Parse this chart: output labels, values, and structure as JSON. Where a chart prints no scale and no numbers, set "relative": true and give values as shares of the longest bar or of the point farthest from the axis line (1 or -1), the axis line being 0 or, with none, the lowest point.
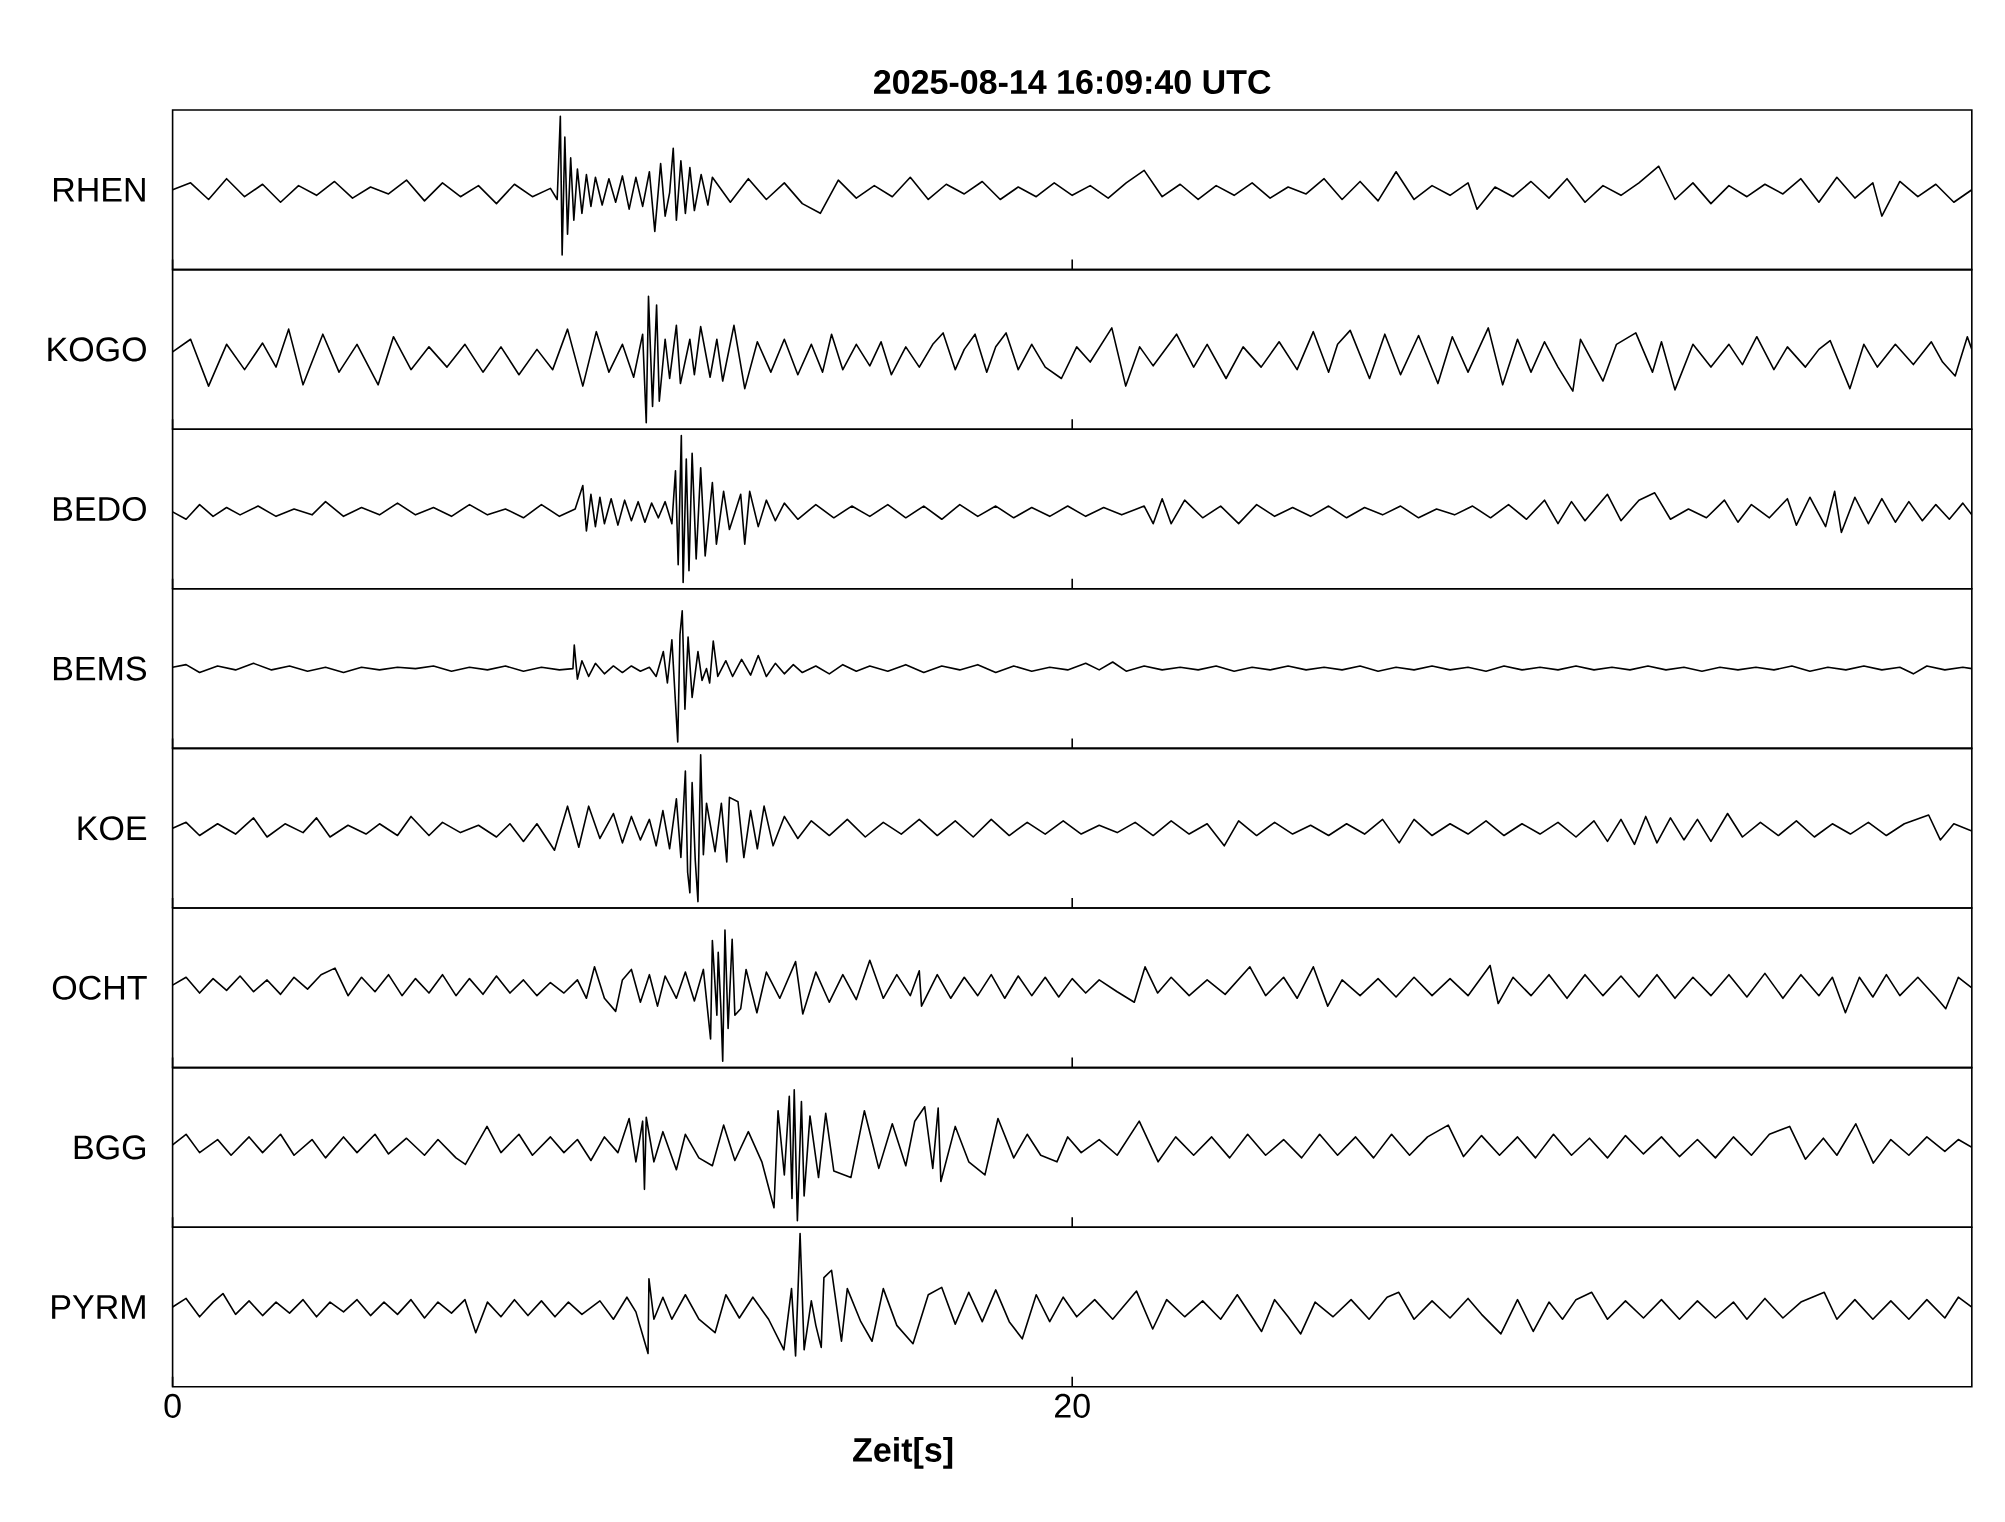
{
  "chart_data": [
    {
      "type": "line",
      "title": "2025-08-14  16:09:40 UTC",
      "ylabel": "RHEN",
      "relative": true,
      "color": "#000000",
      "xlim": [
        0,
        40
      ],
      "xticks": [
        0,
        20
      ],
      "tick_labels": false,
      "x": [
        0,
        0.4,
        0.8,
        1.2,
        1.6,
        2,
        2.4,
        2.8,
        3.2,
        3.6,
        4,
        4.4,
        4.8,
        5.2,
        5.6,
        6,
        6.4,
        6.8,
        7.2,
        7.6,
        8,
        8.4,
        8.55,
        8.62,
        8.66,
        8.72,
        8.78,
        8.85,
        8.92,
        9,
        9.1,
        9.2,
        9.3,
        9.4,
        9.55,
        9.7,
        9.85,
        10,
        10.15,
        10.3,
        10.45,
        10.6,
        10.72,
        10.85,
        10.95,
        11.05,
        11.13,
        11.2,
        11.3,
        11.4,
        11.5,
        11.6,
        11.75,
        11.9,
        12,
        12.4,
        12.8,
        13.2,
        13.6,
        14,
        14.4,
        14.8,
        15.2,
        15.6,
        16,
        16.4,
        16.8,
        17.2,
        17.6,
        18,
        18.4,
        18.8,
        19.2,
        19.6,
        20,
        20.4,
        20.8,
        21.2,
        21.6,
        22,
        22.4,
        22.8,
        23.2,
        23.6,
        24,
        24.4,
        24.8,
        25.2,
        25.6,
        26,
        26.4,
        26.8,
        27.2,
        27.6,
        28,
        28.4,
        28.8,
        29,
        29.4,
        29.8,
        30.2,
        30.6,
        31,
        31.4,
        31.8,
        32.2,
        32.6,
        33.04,
        33.4,
        33.8,
        34.2,
        34.6,
        35,
        35.4,
        35.8,
        36.2,
        36.6,
        37,
        37.4,
        37.8,
        38,
        38.4,
        38.8,
        39.2,
        39.6,
        40
      ],
      "values": [
        0.47,
        0.52,
        0.4,
        0.55,
        0.42,
        0.51,
        0.38,
        0.5,
        0.43,
        0.53,
        0.41,
        0.49,
        0.44,
        0.54,
        0.39,
        0.52,
        0.42,
        0.5,
        0.37,
        0.51,
        0.42,
        0.48,
        0.4,
        1.0,
        0.0,
        0.85,
        0.15,
        0.7,
        0.25,
        0.62,
        0.3,
        0.58,
        0.35,
        0.56,
        0.36,
        0.55,
        0.38,
        0.57,
        0.33,
        0.56,
        0.35,
        0.6,
        0.17,
        0.66,
        0.28,
        0.45,
        0.77,
        0.25,
        0.68,
        0.3,
        0.63,
        0.32,
        0.58,
        0.36,
        0.56,
        0.38,
        0.55,
        0.4,
        0.52,
        0.37,
        0.3,
        0.54,
        0.41,
        0.5,
        0.42,
        0.56,
        0.4,
        0.51,
        0.44,
        0.53,
        0.4,
        0.49,
        0.42,
        0.52,
        0.43,
        0.5,
        0.41,
        0.52,
        0.61,
        0.42,
        0.51,
        0.4,
        0.5,
        0.43,
        0.52,
        0.41,
        0.49,
        0.44,
        0.55,
        0.4,
        0.53,
        0.39,
        0.6,
        0.4,
        0.5,
        0.43,
        0.52,
        0.33,
        0.49,
        0.42,
        0.53,
        0.41,
        0.55,
        0.38,
        0.5,
        0.43,
        0.52,
        0.64,
        0.4,
        0.52,
        0.37,
        0.5,
        0.42,
        0.51,
        0.44,
        0.55,
        0.38,
        0.56,
        0.41,
        0.52,
        0.28,
        0.53,
        0.42,
        0.51,
        0.38,
        0.47
      ]
    },
    {
      "type": "line",
      "ylabel": "KOGO",
      "relative": true,
      "color": "#000000",
      "xlim": [
        0,
        40
      ],
      "xticks": [
        0,
        20
      ],
      "tick_labels": false,
      "x": [
        0,
        0.4,
        0.8,
        1.2,
        1.6,
        2.0,
        2.3,
        2.58,
        2.9,
        3.34,
        3.7,
        4.1,
        4.57,
        4.91,
        5.3,
        5.7,
        6.1,
        6.5,
        6.9,
        7.3,
        7.7,
        8.1,
        8.45,
        8.78,
        9.12,
        9.42,
        9.7,
        10.0,
        10.25,
        10.45,
        10.53,
        10.58,
        10.67,
        10.76,
        10.82,
        10.95,
        11.05,
        11.2,
        11.29,
        11.5,
        11.6,
        11.74,
        11.95,
        12.1,
        12.23,
        12.48,
        12.72,
        13.0,
        13.3,
        13.6,
        13.9,
        14.2,
        14.45,
        14.65,
        14.9,
        15.2,
        15.5,
        15.75,
        15.98,
        16.3,
        16.6,
        16.9,
        17.13,
        17.4,
        17.6,
        17.84,
        18.1,
        18.3,
        18.53,
        18.8,
        19.1,
        19.4,
        19.76,
        20.1,
        20.4,
        20.88,
        21.19,
        21.5,
        21.8,
        22.32,
        22.7,
        23.0,
        23.42,
        23.8,
        24.2,
        24.6,
        25.0,
        25.36,
        25.7,
        25.9,
        26.18,
        26.61,
        26.95,
        27.3,
        27.7,
        28.13,
        28.45,
        28.8,
        29.25,
        29.57,
        29.9,
        30.2,
        30.5,
        30.8,
        31.13,
        31.3,
        31.8,
        32.1,
        32.53,
        32.9,
        33.1,
        33.4,
        33.8,
        34.2,
        34.6,
        34.9,
        35.22,
        35.6,
        35.9,
        36.3,
        36.6,
        36.85,
        37.29,
        37.6,
        37.9,
        38.3,
        38.7,
        39.1,
        39.35,
        39.63,
        39.9,
        40
      ],
      "values": [
        0.56,
        0.66,
        0.29,
        0.62,
        0.42,
        0.63,
        0.44,
        0.74,
        0.3,
        0.7,
        0.4,
        0.62,
        0.3,
        0.68,
        0.42,
        0.6,
        0.44,
        0.62,
        0.4,
        0.6,
        0.38,
        0.58,
        0.42,
        0.74,
        0.29,
        0.72,
        0.4,
        0.62,
        0.36,
        0.7,
        0.0,
        1.0,
        0.13,
        0.93,
        0.17,
        0.66,
        0.35,
        0.77,
        0.31,
        0.66,
        0.38,
        0.76,
        0.36,
        0.66,
        0.33,
        0.77,
        0.27,
        0.64,
        0.4,
        0.66,
        0.38,
        0.62,
        0.4,
        0.7,
        0.42,
        0.62,
        0.45,
        0.64,
        0.38,
        0.6,
        0.44,
        0.62,
        0.71,
        0.42,
        0.58,
        0.7,
        0.4,
        0.6,
        0.71,
        0.42,
        0.62,
        0.44,
        0.35,
        0.6,
        0.48,
        0.75,
        0.29,
        0.6,
        0.45,
        0.7,
        0.44,
        0.62,
        0.35,
        0.6,
        0.44,
        0.64,
        0.42,
        0.72,
        0.4,
        0.62,
        0.73,
        0.35,
        0.7,
        0.38,
        0.69,
        0.31,
        0.68,
        0.4,
        0.75,
        0.3,
        0.66,
        0.4,
        0.64,
        0.44,
        0.25,
        0.66,
        0.33,
        0.62,
        0.71,
        0.4,
        0.64,
        0.26,
        0.62,
        0.44,
        0.62,
        0.46,
        0.68,
        0.42,
        0.6,
        0.44,
        0.58,
        0.65,
        0.27,
        0.62,
        0.44,
        0.62,
        0.46,
        0.64,
        0.48,
        0.37,
        0.68,
        0.58
      ]
    },
    {
      "type": "line",
      "ylabel": "BEDO",
      "relative": true,
      "color": "#000000",
      "xlim": [
        0,
        40
      ],
      "xticks": [
        0,
        20
      ],
      "tick_labels": false,
      "x": [
        0,
        0.3,
        0.6,
        0.9,
        1.2,
        1.5,
        1.9,
        2.3,
        2.7,
        3.1,
        3.4,
        3.8,
        4.2,
        4.6,
        5.0,
        5.4,
        5.8,
        6.2,
        6.6,
        7.0,
        7.4,
        7.8,
        8.2,
        8.6,
        8.95,
        9.12,
        9.2,
        9.3,
        9.4,
        9.5,
        9.6,
        9.75,
        9.9,
        10.05,
        10.2,
        10.35,
        10.5,
        10.65,
        10.8,
        10.95,
        11.1,
        11.18,
        11.24,
        11.31,
        11.35,
        11.42,
        11.48,
        11.55,
        11.64,
        11.74,
        11.84,
        12.0,
        12.09,
        12.25,
        12.38,
        12.63,
        12.72,
        12.83,
        13.02,
        13.2,
        13.4,
        13.6,
        13.9,
        14.3,
        14.7,
        15.1,
        15.5,
        15.9,
        16.3,
        16.7,
        17.1,
        17.5,
        17.9,
        18.3,
        18.7,
        19.1,
        19.5,
        19.9,
        20.3,
        20.7,
        21.1,
        21.6,
        21.8,
        22.0,
        22.2,
        22.5,
        22.9,
        23.3,
        23.7,
        24.1,
        24.5,
        24.9,
        25.3,
        25.7,
        26.1,
        26.5,
        26.9,
        27.3,
        27.7,
        28.1,
        28.5,
        28.9,
        29.3,
        29.7,
        30.1,
        30.5,
        30.8,
        31.1,
        31.4,
        31.9,
        32.2,
        32.6,
        32.95,
        33.3,
        33.7,
        34.1,
        34.5,
        34.8,
        35.1,
        35.5,
        35.9,
        36.1,
        36.4,
        36.75,
        36.95,
        37.1,
        37.4,
        37.7,
        38.0,
        38.3,
        38.6,
        38.9,
        39.2,
        39.5,
        39.8,
        40
      ],
      "values": [
        0.48,
        0.43,
        0.53,
        0.45,
        0.51,
        0.46,
        0.52,
        0.45,
        0.5,
        0.46,
        0.55,
        0.45,
        0.51,
        0.46,
        0.54,
        0.46,
        0.51,
        0.45,
        0.53,
        0.46,
        0.5,
        0.44,
        0.53,
        0.45,
        0.5,
        0.66,
        0.35,
        0.6,
        0.38,
        0.58,
        0.4,
        0.57,
        0.39,
        0.56,
        0.42,
        0.55,
        0.41,
        0.54,
        0.44,
        0.55,
        0.4,
        0.76,
        0.12,
        1.0,
        0.0,
        0.84,
        0.08,
        0.88,
        0.16,
        0.78,
        0.18,
        0.68,
        0.26,
        0.62,
        0.36,
        0.6,
        0.26,
        0.62,
        0.38,
        0.56,
        0.42,
        0.54,
        0.43,
        0.53,
        0.44,
        0.52,
        0.45,
        0.53,
        0.44,
        0.52,
        0.43,
        0.53,
        0.45,
        0.52,
        0.44,
        0.51,
        0.45,
        0.52,
        0.45,
        0.51,
        0.46,
        0.52,
        0.4,
        0.57,
        0.4,
        0.56,
        0.44,
        0.52,
        0.4,
        0.53,
        0.45,
        0.51,
        0.45,
        0.52,
        0.44,
        0.51,
        0.46,
        0.52,
        0.44,
        0.5,
        0.46,
        0.52,
        0.44,
        0.53,
        0.43,
        0.56,
        0.4,
        0.55,
        0.42,
        0.6,
        0.42,
        0.56,
        0.61,
        0.43,
        0.5,
        0.44,
        0.56,
        0.41,
        0.53,
        0.44,
        0.57,
        0.39,
        0.58,
        0.38,
        0.62,
        0.34,
        0.58,
        0.4,
        0.57,
        0.41,
        0.55,
        0.42,
        0.53,
        0.43,
        0.54,
        0.46
      ]
    },
    {
      "type": "line",
      "ylabel": "BEMS",
      "relative": true,
      "color": "#000000",
      "xlim": [
        0,
        40
      ],
      "xticks": [
        0,
        20
      ],
      "tick_labels": false,
      "x": [
        0,
        0.3,
        0.6,
        1.0,
        1.4,
        1.8,
        2.2,
        2.6,
        3.0,
        3.4,
        3.8,
        4.2,
        4.6,
        5.0,
        5.4,
        5.8,
        6.2,
        6.6,
        7.0,
        7.4,
        7.8,
        8.2,
        8.6,
        8.9,
        8.93,
        9.0,
        9.1,
        9.25,
        9.4,
        9.6,
        9.8,
        10.0,
        10.2,
        10.4,
        10.6,
        10.75,
        10.91,
        11.0,
        11.1,
        11.18,
        11.23,
        11.28,
        11.33,
        11.39,
        11.46,
        11.55,
        11.68,
        11.77,
        11.87,
        11.94,
        12.02,
        12.12,
        12.3,
        12.45,
        12.65,
        12.85,
        13.02,
        13.2,
        13.4,
        13.6,
        13.8,
        14.0,
        14.3,
        14.6,
        14.9,
        15.2,
        15.5,
        15.9,
        16.3,
        16.7,
        17.1,
        17.5,
        17.9,
        18.3,
        18.7,
        19.1,
        19.5,
        19.9,
        20.3,
        20.6,
        20.9,
        21.2,
        21.6,
        22.0,
        22.4,
        22.8,
        23.2,
        23.6,
        24.0,
        24.4,
        24.8,
        25.2,
        25.6,
        26.0,
        26.4,
        26.8,
        27.2,
        27.6,
        28.0,
        28.4,
        28.8,
        29.2,
        29.6,
        30.0,
        30.4,
        30.8,
        31.2,
        31.6,
        32.0,
        32.4,
        32.8,
        33.2,
        33.6,
        34.0,
        34.4,
        34.8,
        35.2,
        35.6,
        36.0,
        36.4,
        36.8,
        37.2,
        37.6,
        38.0,
        38.4,
        38.7,
        39.0,
        39.4,
        39.8,
        40
      ],
      "values": [
        0.57,
        0.59,
        0.53,
        0.58,
        0.55,
        0.6,
        0.55,
        0.58,
        0.54,
        0.57,
        0.53,
        0.57,
        0.55,
        0.57,
        0.56,
        0.58,
        0.54,
        0.57,
        0.55,
        0.58,
        0.54,
        0.57,
        0.55,
        0.56,
        0.74,
        0.48,
        0.62,
        0.5,
        0.6,
        0.52,
        0.58,
        0.53,
        0.58,
        0.54,
        0.57,
        0.5,
        0.69,
        0.45,
        0.78,
        0.3,
        0.0,
        0.82,
        1.0,
        0.25,
        0.8,
        0.34,
        0.69,
        0.47,
        0.56,
        0.45,
        0.77,
        0.5,
        0.62,
        0.5,
        0.63,
        0.51,
        0.66,
        0.5,
        0.6,
        0.52,
        0.59,
        0.53,
        0.58,
        0.52,
        0.59,
        0.54,
        0.58,
        0.54,
        0.59,
        0.53,
        0.58,
        0.55,
        0.59,
        0.53,
        0.58,
        0.54,
        0.57,
        0.55,
        0.6,
        0.55,
        0.61,
        0.54,
        0.58,
        0.55,
        0.57,
        0.55,
        0.58,
        0.54,
        0.57,
        0.55,
        0.58,
        0.55,
        0.57,
        0.55,
        0.58,
        0.54,
        0.57,
        0.55,
        0.58,
        0.55,
        0.57,
        0.54,
        0.58,
        0.55,
        0.57,
        0.55,
        0.58,
        0.55,
        0.57,
        0.55,
        0.58,
        0.55,
        0.57,
        0.54,
        0.57,
        0.55,
        0.57,
        0.55,
        0.58,
        0.54,
        0.57,
        0.55,
        0.58,
        0.55,
        0.57,
        0.52,
        0.58,
        0.55,
        0.57,
        0.56
      ]
    },
    {
      "type": "line",
      "ylabel": "KOE",
      "relative": true,
      "color": "#000000",
      "xlim": [
        0,
        40
      ],
      "xticks": [
        0,
        20
      ],
      "tick_labels": false,
      "x": [
        0,
        0.3,
        0.6,
        1.0,
        1.4,
        1.8,
        2.1,
        2.5,
        2.9,
        3.2,
        3.5,
        3.9,
        4.3,
        4.6,
        5.0,
        5.3,
        5.7,
        6.0,
        6.4,
        6.8,
        7.2,
        7.5,
        7.8,
        8.1,
        8.49,
        8.78,
        9.03,
        9.25,
        9.5,
        9.8,
        10.0,
        10.2,
        10.4,
        10.6,
        10.75,
        10.9,
        11.05,
        11.2,
        11.3,
        11.4,
        11.45,
        11.5,
        11.55,
        11.62,
        11.68,
        11.74,
        11.8,
        11.87,
        12.06,
        12.2,
        12.32,
        12.38,
        12.57,
        12.7,
        12.85,
        13.0,
        13.15,
        13.35,
        13.6,
        13.9,
        14.2,
        14.6,
        15.0,
        15.4,
        15.8,
        16.2,
        16.6,
        17.0,
        17.4,
        17.8,
        18.2,
        18.6,
        19.0,
        19.4,
        19.8,
        20.2,
        20.6,
        21.0,
        21.4,
        21.8,
        22.2,
        22.6,
        23.0,
        23.38,
        23.7,
        24.1,
        24.5,
        24.9,
        25.3,
        25.7,
        26.1,
        26.5,
        26.9,
        27.27,
        27.6,
        28.0,
        28.4,
        28.8,
        29.2,
        29.6,
        30.0,
        30.4,
        30.8,
        31.2,
        31.6,
        31.9,
        32.2,
        32.5,
        32.75,
        33.0,
        33.3,
        33.6,
        33.9,
        34.2,
        34.57,
        34.9,
        35.3,
        35.7,
        36.1,
        36.5,
        36.9,
        37.3,
        37.7,
        38.1,
        38.5,
        39.04,
        39.3,
        39.6,
        40
      ],
      "values": [
        0.5,
        0.54,
        0.45,
        0.53,
        0.46,
        0.57,
        0.44,
        0.53,
        0.47,
        0.57,
        0.44,
        0.52,
        0.46,
        0.53,
        0.45,
        0.58,
        0.45,
        0.54,
        0.47,
        0.52,
        0.44,
        0.53,
        0.41,
        0.53,
        0.35,
        0.65,
        0.37,
        0.65,
        0.43,
        0.6,
        0.4,
        0.58,
        0.42,
        0.56,
        0.38,
        0.62,
        0.36,
        0.7,
        0.3,
        0.89,
        0.2,
        0.06,
        0.81,
        0.28,
        0.0,
        1.0,
        0.32,
        0.67,
        0.34,
        0.67,
        0.27,
        0.71,
        0.68,
        0.3,
        0.62,
        0.36,
        0.65,
        0.38,
        0.58,
        0.43,
        0.55,
        0.45,
        0.56,
        0.44,
        0.54,
        0.46,
        0.56,
        0.45,
        0.55,
        0.44,
        0.56,
        0.45,
        0.54,
        0.46,
        0.55,
        0.46,
        0.52,
        0.47,
        0.54,
        0.45,
        0.55,
        0.46,
        0.53,
        0.38,
        0.55,
        0.45,
        0.54,
        0.46,
        0.52,
        0.45,
        0.53,
        0.46,
        0.56,
        0.4,
        0.56,
        0.45,
        0.53,
        0.46,
        0.55,
        0.45,
        0.53,
        0.46,
        0.54,
        0.44,
        0.55,
        0.41,
        0.56,
        0.39,
        0.58,
        0.4,
        0.57,
        0.42,
        0.56,
        0.41,
        0.6,
        0.44,
        0.54,
        0.45,
        0.55,
        0.44,
        0.53,
        0.46,
        0.54,
        0.45,
        0.53,
        0.59,
        0.42,
        0.53,
        0.48
      ]
    },
    {
      "type": "line",
      "ylabel": "OCHT",
      "relative": true,
      "color": "#000000",
      "xlim": [
        0,
        40
      ],
      "xticks": [
        0,
        20
      ],
      "tick_labels": false,
      "x": [
        0,
        0.3,
        0.6,
        0.9,
        1.2,
        1.5,
        1.8,
        2.1,
        2.4,
        2.7,
        3.0,
        3.3,
        3.61,
        3.9,
        4.2,
        4.5,
        4.8,
        5.1,
        5.4,
        5.7,
        6.0,
        6.3,
        6.6,
        6.9,
        7.2,
        7.5,
        7.8,
        8.1,
        8.4,
        8.7,
        9.0,
        9.2,
        9.38,
        9.6,
        9.85,
        10.0,
        10.2,
        10.4,
        10.6,
        10.78,
        10.95,
        11.2,
        11.4,
        11.6,
        11.8,
        11.96,
        12.0,
        12.1,
        12.13,
        12.19,
        12.23,
        12.28,
        12.35,
        12.44,
        12.5,
        12.63,
        12.75,
        12.99,
        13.2,
        13.5,
        13.85,
        14.01,
        14.3,
        14.6,
        14.9,
        15.2,
        15.5,
        15.8,
        16.1,
        16.4,
        16.6,
        16.65,
        17.0,
        17.3,
        17.6,
        17.9,
        18.2,
        18.5,
        18.8,
        19.1,
        19.4,
        19.7,
        20.0,
        20.3,
        20.6,
        21.0,
        21.38,
        21.62,
        21.9,
        22.2,
        22.6,
        23.0,
        23.4,
        23.95,
        24.3,
        24.7,
        25.0,
        25.36,
        25.68,
        26.0,
        26.4,
        26.8,
        27.2,
        27.6,
        28.0,
        28.4,
        28.8,
        29.29,
        29.47,
        29.8,
        30.2,
        30.6,
        31.0,
        31.4,
        31.8,
        32.2,
        32.6,
        33.0,
        33.4,
        33.8,
        34.2,
        34.6,
        35.0,
        35.4,
        35.8,
        36.2,
        36.6,
        36.9,
        37.19,
        37.5,
        37.8,
        38.1,
        38.4,
        38.8,
        39.2,
        39.42,
        39.7,
        40
      ],
      "values": [
        0.58,
        0.64,
        0.52,
        0.63,
        0.54,
        0.65,
        0.53,
        0.62,
        0.51,
        0.64,
        0.55,
        0.66,
        0.71,
        0.5,
        0.64,
        0.53,
        0.66,
        0.5,
        0.63,
        0.52,
        0.66,
        0.5,
        0.63,
        0.51,
        0.65,
        0.52,
        0.62,
        0.5,
        0.6,
        0.52,
        0.62,
        0.48,
        0.72,
        0.48,
        0.38,
        0.62,
        0.7,
        0.45,
        0.66,
        0.42,
        0.65,
        0.48,
        0.68,
        0.46,
        0.7,
        0.17,
        0.92,
        0.35,
        0.83,
        0.4,
        0.0,
        1.0,
        0.25,
        0.93,
        0.35,
        0.4,
        0.7,
        0.37,
        0.68,
        0.48,
        0.76,
        0.36,
        0.68,
        0.45,
        0.66,
        0.47,
        0.77,
        0.48,
        0.66,
        0.5,
        0.69,
        0.42,
        0.66,
        0.48,
        0.64,
        0.5,
        0.66,
        0.48,
        0.65,
        0.5,
        0.64,
        0.49,
        0.63,
        0.52,
        0.62,
        0.53,
        0.45,
        0.72,
        0.52,
        0.64,
        0.5,
        0.62,
        0.51,
        0.72,
        0.5,
        0.64,
        0.48,
        0.72,
        0.42,
        0.62,
        0.5,
        0.63,
        0.49,
        0.64,
        0.5,
        0.63,
        0.5,
        0.73,
        0.44,
        0.64,
        0.5,
        0.66,
        0.48,
        0.66,
        0.5,
        0.65,
        0.49,
        0.66,
        0.48,
        0.64,
        0.5,
        0.66,
        0.49,
        0.67,
        0.48,
        0.66,
        0.5,
        0.64,
        0.37,
        0.64,
        0.49,
        0.66,
        0.5,
        0.64,
        0.49,
        0.4,
        0.64,
        0.56
      ]
    },
    {
      "type": "line",
      "ylabel": "BGG",
      "relative": true,
      "color": "#000000",
      "xlim": [
        0,
        40
      ],
      "xticks": [
        0,
        20
      ],
      "tick_labels": false,
      "x": [
        0,
        0.3,
        0.6,
        1.0,
        1.3,
        1.7,
        2.0,
        2.4,
        2.7,
        3.1,
        3.4,
        3.8,
        4.1,
        4.5,
        4.8,
        5.2,
        5.6,
        5.9,
        6.3,
        6.51,
        6.99,
        7.3,
        7.7,
        8.0,
        8.4,
        8.7,
        9.0,
        9.3,
        9.6,
        9.9,
        10.15,
        10.3,
        10.45,
        10.49,
        10.53,
        10.7,
        10.9,
        11.2,
        11.4,
        11.7,
        12.0,
        12.25,
        12.5,
        12.8,
        13.1,
        13.37,
        13.46,
        13.6,
        13.71,
        13.77,
        13.82,
        13.89,
        13.98,
        14.04,
        14.17,
        14.36,
        14.52,
        14.7,
        15.08,
        15.38,
        15.7,
        16.0,
        16.3,
        16.5,
        16.72,
        16.9,
        17.02,
        17.08,
        17.4,
        17.7,
        18.06,
        18.35,
        18.7,
        19.0,
        19.3,
        19.66,
        19.9,
        20.2,
        20.6,
        21.0,
        21.49,
        21.91,
        22.3,
        22.7,
        23.1,
        23.5,
        23.9,
        24.3,
        24.7,
        25.1,
        25.5,
        25.9,
        26.3,
        26.7,
        27.1,
        27.5,
        27.9,
        28.36,
        28.7,
        29.1,
        29.5,
        29.9,
        30.3,
        30.7,
        31.1,
        31.5,
        31.9,
        32.3,
        32.7,
        33.1,
        33.5,
        33.9,
        34.3,
        34.7,
        35.1,
        35.5,
        35.95,
        36.3,
        36.7,
        37.0,
        37.42,
        37.81,
        38.2,
        38.6,
        39.0,
        39.4,
        39.7,
        40
      ],
      "values": [
        0.58,
        0.66,
        0.52,
        0.62,
        0.5,
        0.64,
        0.52,
        0.66,
        0.5,
        0.62,
        0.48,
        0.64,
        0.52,
        0.66,
        0.51,
        0.63,
        0.5,
        0.62,
        0.48,
        0.43,
        0.72,
        0.52,
        0.66,
        0.5,
        0.64,
        0.52,
        0.62,
        0.46,
        0.64,
        0.52,
        0.78,
        0.45,
        0.76,
        0.24,
        0.79,
        0.45,
        0.68,
        0.39,
        0.66,
        0.48,
        0.42,
        0.73,
        0.46,
        0.68,
        0.45,
        0.1,
        0.84,
        0.35,
        0.95,
        0.17,
        1.0,
        0.0,
        0.91,
        0.19,
        0.8,
        0.33,
        0.82,
        0.38,
        0.33,
        0.84,
        0.4,
        0.74,
        0.42,
        0.76,
        0.87,
        0.4,
        0.86,
        0.3,
        0.72,
        0.45,
        0.35,
        0.78,
        0.48,
        0.66,
        0.5,
        0.45,
        0.64,
        0.52,
        0.62,
        0.5,
        0.76,
        0.45,
        0.64,
        0.5,
        0.64,
        0.48,
        0.66,
        0.5,
        0.62,
        0.48,
        0.66,
        0.5,
        0.64,
        0.48,
        0.66,
        0.5,
        0.64,
        0.73,
        0.49,
        0.65,
        0.5,
        0.64,
        0.48,
        0.66,
        0.5,
        0.63,
        0.48,
        0.65,
        0.51,
        0.64,
        0.49,
        0.62,
        0.48,
        0.64,
        0.5,
        0.66,
        0.72,
        0.47,
        0.63,
        0.5,
        0.74,
        0.44,
        0.62,
        0.5,
        0.64,
        0.53,
        0.62,
        0.56
      ]
    },
    {
      "type": "line",
      "ylabel": "PYRM",
      "xlabel": "Zeit[s]",
      "relative": true,
      "color": "#000000",
      "xlim": [
        0,
        40
      ],
      "xticks": [
        0,
        20
      ],
      "tick_labels": "x",
      "x": [
        0,
        0.3,
        0.6,
        0.9,
        1.12,
        1.4,
        1.7,
        2.0,
        2.3,
        2.6,
        2.9,
        3.2,
        3.5,
        3.8,
        4.1,
        4.4,
        4.7,
        5.0,
        5.3,
        5.6,
        5.9,
        6.2,
        6.5,
        6.74,
        7.0,
        7.3,
        7.6,
        7.9,
        8.2,
        8.5,
        8.8,
        9.1,
        9.5,
        9.8,
        10.1,
        10.3,
        10.57,
        10.59,
        10.7,
        10.9,
        11.1,
        11.4,
        11.7,
        12.06,
        12.3,
        12.6,
        12.9,
        13.25,
        13.59,
        13.76,
        13.85,
        13.95,
        14.04,
        14.2,
        14.3,
        14.42,
        14.48,
        14.65,
        14.87,
        15.0,
        15.3,
        15.55,
        15.8,
        16.1,
        16.46,
        16.8,
        17.1,
        17.4,
        17.7,
        18.0,
        18.3,
        18.6,
        18.89,
        19.2,
        19.5,
        19.8,
        20.1,
        20.5,
        20.9,
        21.43,
        21.79,
        22.1,
        22.5,
        22.9,
        23.3,
        23.67,
        24.21,
        24.5,
        24.8,
        25.08,
        25.4,
        25.8,
        26.2,
        26.6,
        27.0,
        27.26,
        27.6,
        28.0,
        28.4,
        28.8,
        29.1,
        29.53,
        29.9,
        30.25,
        30.6,
        30.9,
        31.2,
        31.55,
        31.9,
        32.3,
        32.7,
        33.1,
        33.5,
        33.9,
        34.3,
        34.7,
        35.0,
        35.4,
        35.8,
        36.2,
        36.72,
        37.0,
        37.4,
        37.8,
        38.2,
        38.6,
        39.0,
        39.4,
        39.7,
        40
      ],
      "values": [
        0.4,
        0.47,
        0.32,
        0.44,
        0.51,
        0.34,
        0.45,
        0.33,
        0.44,
        0.35,
        0.46,
        0.32,
        0.44,
        0.36,
        0.46,
        0.33,
        0.44,
        0.34,
        0.46,
        0.31,
        0.44,
        0.35,
        0.46,
        0.19,
        0.44,
        0.32,
        0.46,
        0.33,
        0.45,
        0.32,
        0.44,
        0.34,
        0.45,
        0.3,
        0.48,
        0.36,
        0.02,
        0.63,
        0.3,
        0.48,
        0.3,
        0.5,
        0.3,
        0.19,
        0.5,
        0.31,
        0.48,
        0.3,
        0.05,
        0.55,
        0.0,
        1.0,
        0.05,
        0.45,
        0.25,
        0.07,
        0.64,
        0.7,
        0.12,
        0.55,
        0.28,
        0.12,
        0.55,
        0.25,
        0.1,
        0.5,
        0.56,
        0.26,
        0.52,
        0.28,
        0.54,
        0.28,
        0.14,
        0.5,
        0.28,
        0.48,
        0.32,
        0.46,
        0.3,
        0.53,
        0.22,
        0.46,
        0.32,
        0.45,
        0.3,
        0.5,
        0.2,
        0.46,
        0.32,
        0.18,
        0.44,
        0.32,
        0.46,
        0.3,
        0.48,
        0.52,
        0.3,
        0.45,
        0.31,
        0.47,
        0.34,
        0.18,
        0.46,
        0.2,
        0.44,
        0.3,
        0.46,
        0.52,
        0.3,
        0.45,
        0.31,
        0.46,
        0.3,
        0.45,
        0.31,
        0.44,
        0.3,
        0.47,
        0.31,
        0.44,
        0.52,
        0.3,
        0.46,
        0.3,
        0.45,
        0.3,
        0.46,
        0.31,
        0.48,
        0.4
      ]
    }
  ]
}
